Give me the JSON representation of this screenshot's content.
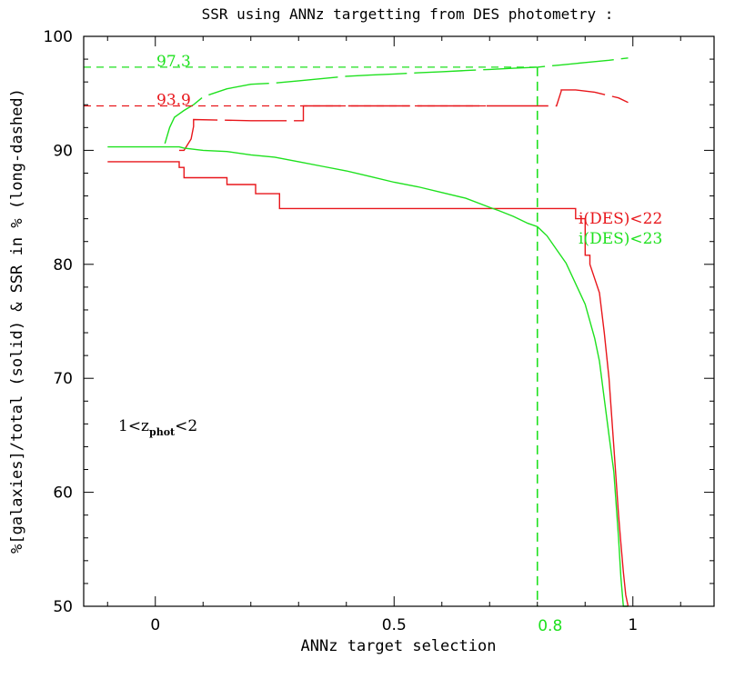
{
  "chart_data": {
    "type": "line",
    "title": "SSR using ANNz targetting from DES photometry :",
    "xlabel": "ANNz target selection",
    "ylabel": "%[galaxies]/total (solid) & SSR in % (long-dashed)",
    "xlim": [
      -0.15,
      1.17
    ],
    "ylim": [
      50,
      100
    ],
    "xticks": [
      0,
      0.5,
      1
    ],
    "xtick_labels": [
      "0",
      "0.5",
      "1"
    ],
    "yticks": [
      50,
      60,
      70,
      80,
      90,
      100
    ],
    "ytick_labels": [
      "50",
      "60",
      "70",
      "80",
      "90",
      "100"
    ],
    "colors": {
      "red": "#e8161b",
      "green": "#1ee11e"
    },
    "annotation_region": {
      "prefix": "1<z",
      "sub": "phot",
      "suffix": "<2"
    },
    "reference_lines": [
      {
        "series": "i(DES)<23",
        "ssr_value": 97.3,
        "ssr_label": "97.3",
        "selection_value": 0.8,
        "selection_label": "0.8",
        "color": "#1ee11e"
      },
      {
        "series": "i(DES)<22",
        "ssr_value": 93.9,
        "ssr_label": "93.9",
        "color": "#e8161b"
      }
    ],
    "series": [
      {
        "name": "i(DES)<22",
        "color": "#e8161b",
        "fraction_solid": {
          "x": [
            -0.1,
            0.05,
            0.05,
            0.06,
            0.06,
            0.15,
            0.15,
            0.21,
            0.21,
            0.26,
            0.26,
            0.65,
            0.7,
            0.8,
            0.88,
            0.88,
            0.9,
            0.9,
            0.91,
            0.91,
            0.93,
            0.94,
            0.95,
            0.96,
            0.97,
            0.975,
            0.98,
            0.985,
            0.99,
            0.99
          ],
          "y": [
            89.0,
            89.0,
            88.5,
            88.5,
            87.6,
            87.6,
            87.0,
            87.0,
            86.2,
            86.2,
            84.9,
            84.9,
            84.9,
            84.9,
            84.9,
            84.0,
            84.0,
            80.8,
            80.8,
            80.0,
            77.5,
            74.0,
            70.0,
            64.0,
            58.0,
            55.5,
            53.0,
            51.0,
            50.0,
            49.5
          ]
        },
        "ssr_long_dashed": {
          "x": [
            0.05,
            0.06,
            0.075,
            0.08,
            0.08,
            0.2,
            0.29,
            0.31,
            0.31,
            0.5,
            0.6,
            0.7,
            0.8,
            0.84,
            0.85,
            0.85,
            0.88,
            0.92,
            0.95,
            0.97,
            0.99
          ],
          "y": [
            90.0,
            90.0,
            91.0,
            92.1,
            92.7,
            92.6,
            92.6,
            92.6,
            93.9,
            93.9,
            93.9,
            93.9,
            93.9,
            93.9,
            95.2,
            95.3,
            95.3,
            95.1,
            94.8,
            94.6,
            94.2
          ]
        }
      },
      {
        "name": "i(DES)<23",
        "color": "#1ee11e",
        "fraction_solid": {
          "x": [
            -0.1,
            0.0,
            0.05,
            0.06,
            0.1,
            0.15,
            0.2,
            0.25,
            0.3,
            0.35,
            0.4,
            0.45,
            0.5,
            0.55,
            0.6,
            0.65,
            0.7,
            0.72,
            0.75,
            0.78,
            0.8,
            0.82,
            0.84,
            0.86,
            0.88,
            0.9,
            0.92,
            0.93,
            0.94,
            0.95,
            0.96,
            0.97,
            0.975,
            0.98,
            0.99
          ],
          "y": [
            90.3,
            90.3,
            90.3,
            90.2,
            90.0,
            89.9,
            89.6,
            89.4,
            89.0,
            88.6,
            88.2,
            87.7,
            87.2,
            86.8,
            86.3,
            85.8,
            85.0,
            84.7,
            84.2,
            83.6,
            83.3,
            82.5,
            81.3,
            80.1,
            78.3,
            76.5,
            73.5,
            71.5,
            68.2,
            65.0,
            61.8,
            56.0,
            52.5,
            49.5,
            48.0
          ]
        },
        "ssr_long_dashed": {
          "x": [
            0.02,
            0.03,
            0.04,
            0.06,
            0.08,
            0.1,
            0.15,
            0.2,
            0.25,
            0.3,
            0.35,
            0.4,
            0.45,
            0.5,
            0.55,
            0.6,
            0.65,
            0.7,
            0.75,
            0.8,
            0.85,
            0.9,
            0.95,
            0.99
          ],
          "y": [
            90.6,
            92.0,
            92.9,
            93.5,
            94.0,
            94.7,
            95.4,
            95.8,
            95.9,
            96.1,
            96.3,
            96.5,
            96.6,
            96.7,
            96.8,
            96.9,
            97.0,
            97.1,
            97.2,
            97.3,
            97.5,
            97.7,
            97.9,
            98.1
          ]
        }
      }
    ]
  }
}
